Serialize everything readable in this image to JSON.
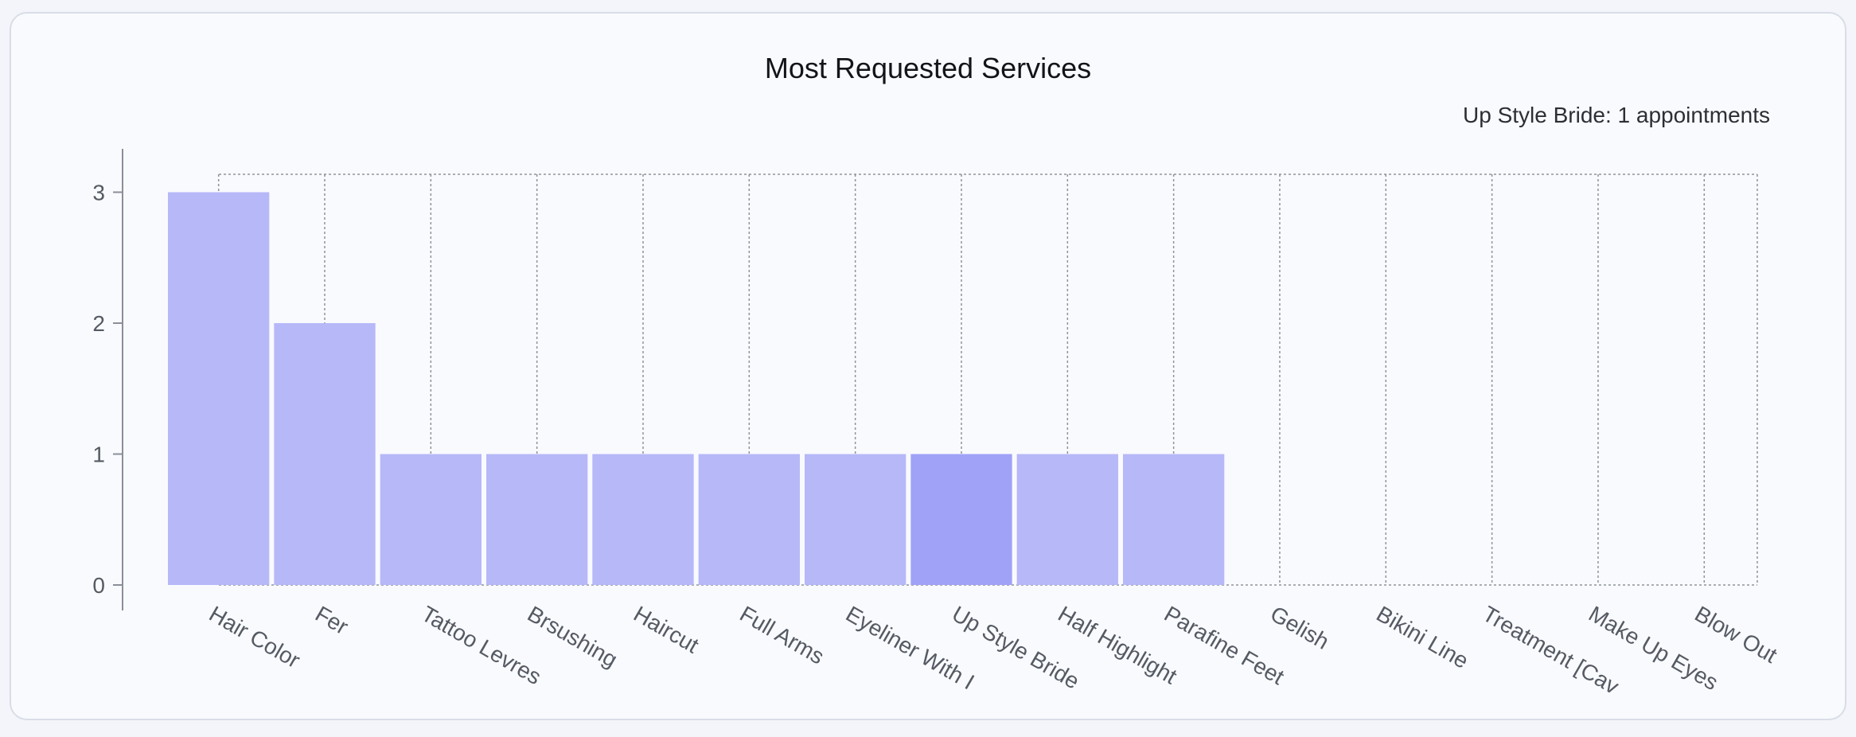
{
  "chart_data": {
    "type": "bar",
    "title": "Most Requested Services",
    "categories": [
      "Hair Color",
      "Fer",
      "Tattoo Levres",
      "Brsushing",
      "Haircut",
      "Full Arms",
      "Eyeliner With I",
      "Up Style Bride",
      "Half Highlight",
      "Parafine Feet",
      "Gelish",
      "Bikini Line",
      "Treatment [Cav",
      "Make Up Eyes",
      "Blow Out"
    ],
    "values": [
      3,
      2,
      1,
      1,
      1,
      1,
      1,
      1,
      1,
      1,
      0,
      0,
      0,
      0,
      0
    ],
    "yticks": [
      "0",
      "1",
      "2",
      "3"
    ],
    "ylim": [
      0,
      3
    ],
    "grid": true,
    "highlighted_category": "Up Style Bride",
    "tooltip": "Up Style Bride: 1 appointments",
    "colors": {
      "bar": "#b6b8f8",
      "bar_active": "#a0a2f8",
      "axis": "#8a8f98",
      "grid": "#8f939a"
    }
  }
}
